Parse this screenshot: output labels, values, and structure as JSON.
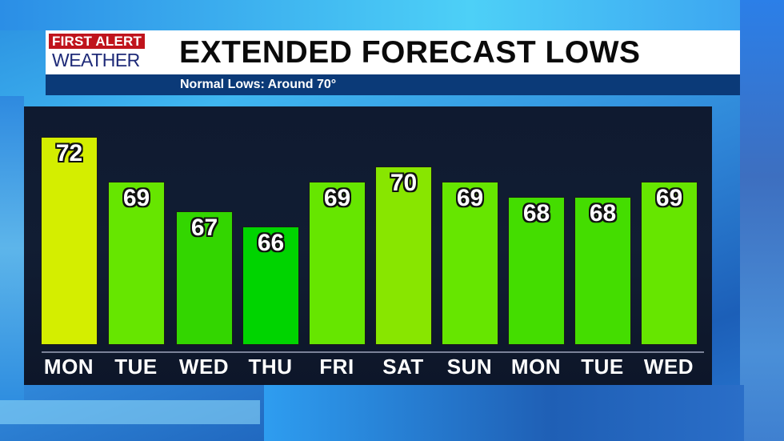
{
  "header": {
    "logo_line1": "FIRST ALERT",
    "logo_line2": "WEATHER",
    "title": "EXTENDED FORECAST LOWS",
    "subtitle": "Normal Lows: Around 70°"
  },
  "colors": {
    "header_bg": "#ffffff",
    "subbar_bg": "#0b3a78",
    "panel_bg": "#111d33",
    "logo_red": "#c0141c",
    "logo_navy": "#1e2a78"
  },
  "chart_data": {
    "type": "bar",
    "title": "EXTENDED FORECAST LOWS",
    "subtitle": "Normal Lows: Around 70°",
    "xlabel": "",
    "ylabel": "",
    "categories": [
      "MON",
      "TUE",
      "WED",
      "THU",
      "FRI",
      "SAT",
      "SUN",
      "MON",
      "TUE",
      "WED"
    ],
    "values": [
      72,
      69,
      67,
      66,
      69,
      70,
      69,
      68,
      68,
      69
    ],
    "bar_colors": [
      "#d4ee00",
      "#66e600",
      "#33d600",
      "#00d400",
      "#66e600",
      "#88e600",
      "#66e600",
      "#44dd00",
      "#44dd00",
      "#66e600"
    ],
    "data_labels": true,
    "grid": false,
    "legend": null
  }
}
